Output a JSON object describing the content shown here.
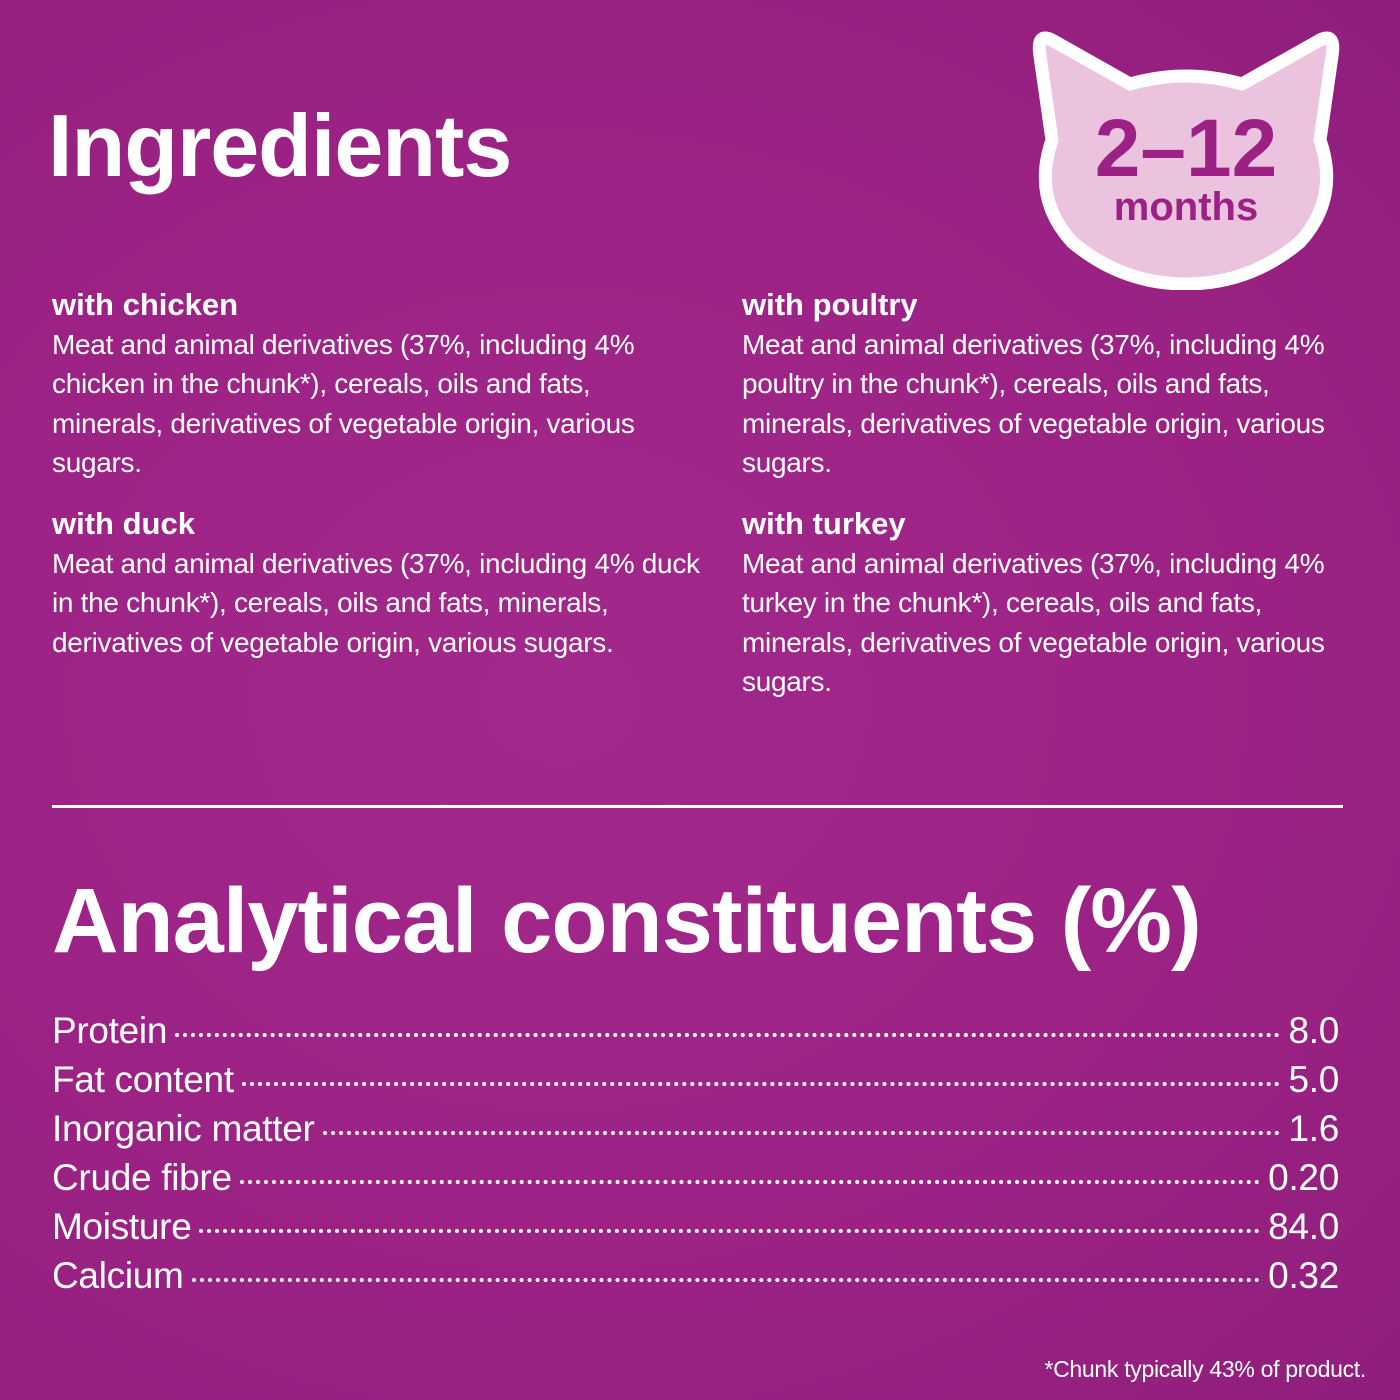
{
  "colors": {
    "background": "#9b2284",
    "badge_fill": "#ecc3df",
    "badge_text": "#9b2284",
    "badge_border": "#ffffff"
  },
  "ingredients": {
    "title": "Ingredients",
    "items": [
      {
        "heading": "with chicken",
        "text": "Meat and animal derivatives (37%, including 4% chicken in the chunk*), cereals, oils and fats, minerals, derivatives of vegetable origin, various sugars."
      },
      {
        "heading": "with poultry",
        "text": "Meat and animal derivatives (37%, including 4% poultry in the chunk*), cereals, oils and fats, minerals, derivatives of vegetable origin, various sugars."
      },
      {
        "heading": "with duck",
        "text": "Meat and animal derivatives (37%, including 4% duck in the chunk*), cereals, oils and fats, minerals, derivatives of vegetable origin, various sugars."
      },
      {
        "heading": "with turkey",
        "text": "Meat and animal derivatives (37%, including 4% turkey in the chunk*), cereals, oils and fats, minerals, derivatives of vegetable origin, various sugars."
      }
    ]
  },
  "badge": {
    "icon": "cat-head-icon",
    "range": "2–12",
    "unit": "months"
  },
  "analytical": {
    "title": "Analytical constituents (%)",
    "rows": [
      {
        "label": "Protein",
        "value": "8.0"
      },
      {
        "label": "Fat content",
        "value": "5.0"
      },
      {
        "label": "Inorganic matter",
        "value": "1.6"
      },
      {
        "label": "Crude fibre",
        "value": "0.20"
      },
      {
        "label": "Moisture",
        "value": "84.0"
      },
      {
        "label": "Calcium",
        "value": "0.32"
      }
    ]
  },
  "footnote": "*Chunk typically 43% of product."
}
